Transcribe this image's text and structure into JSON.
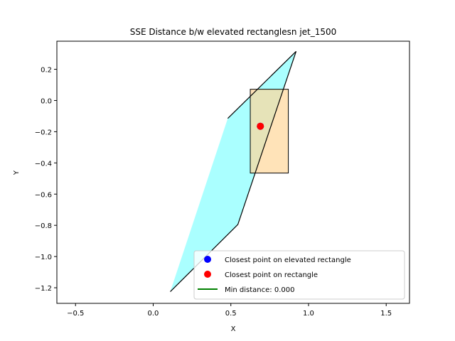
{
  "chart_data": {
    "type": "scatter",
    "title": "SSE Distance b/w elevated rectanglesn jet_1500",
    "xlabel": "X",
    "ylabel": "Y",
    "xlim": [
      -0.62,
      1.65
    ],
    "ylim": [
      -1.3,
      0.38
    ],
    "xticks": [
      -0.5,
      0.0,
      0.5,
      1.0,
      1.5
    ],
    "xtick_labels": [
      "−0.5",
      "0.0",
      "0.5",
      "1.0",
      "1.5"
    ],
    "yticks": [
      -1.2,
      -1.0,
      -0.8,
      -0.6,
      -0.4,
      -0.2,
      0.0,
      0.2
    ],
    "ytick_labels": [
      "−1.2",
      "−1.0",
      "−0.8",
      "−0.6",
      "−0.4",
      "−0.2",
      "0.0",
      "0.2"
    ],
    "grid": false,
    "legend_position": "lower right",
    "elevated_rectangle": {
      "fill_color": "#aaffff",
      "fill_polygon": [
        [
          0.11,
          -1.225
        ],
        [
          0.48,
          -0.115
        ],
        [
          0.92,
          0.315
        ],
        [
          0.545,
          -0.795
        ]
      ],
      "edge_path": [
        [
          0.11,
          -1.225
        ],
        [
          0.545,
          -0.795
        ],
        [
          0.92,
          0.315
        ],
        [
          0.48,
          -0.115
        ]
      ]
    },
    "rectangle": {
      "fill_color": "#ffd79a",
      "x0": 0.625,
      "x1": 0.87,
      "y0": -0.465,
      "y1": 0.072
    },
    "series": [
      {
        "name": "Closest point on elevated rectangle",
        "color": "#0000ff",
        "points": [
          [
            0.69,
            -0.165
          ]
        ]
      },
      {
        "name": "Closest point on rectangle",
        "color": "#ff0000",
        "points": [
          [
            0.69,
            -0.165
          ]
        ]
      },
      {
        "name": "Min distance: 0.000",
        "color": "#008000",
        "line": [
          [
            0.69,
            -0.165
          ],
          [
            0.69,
            -0.165
          ]
        ]
      }
    ]
  }
}
